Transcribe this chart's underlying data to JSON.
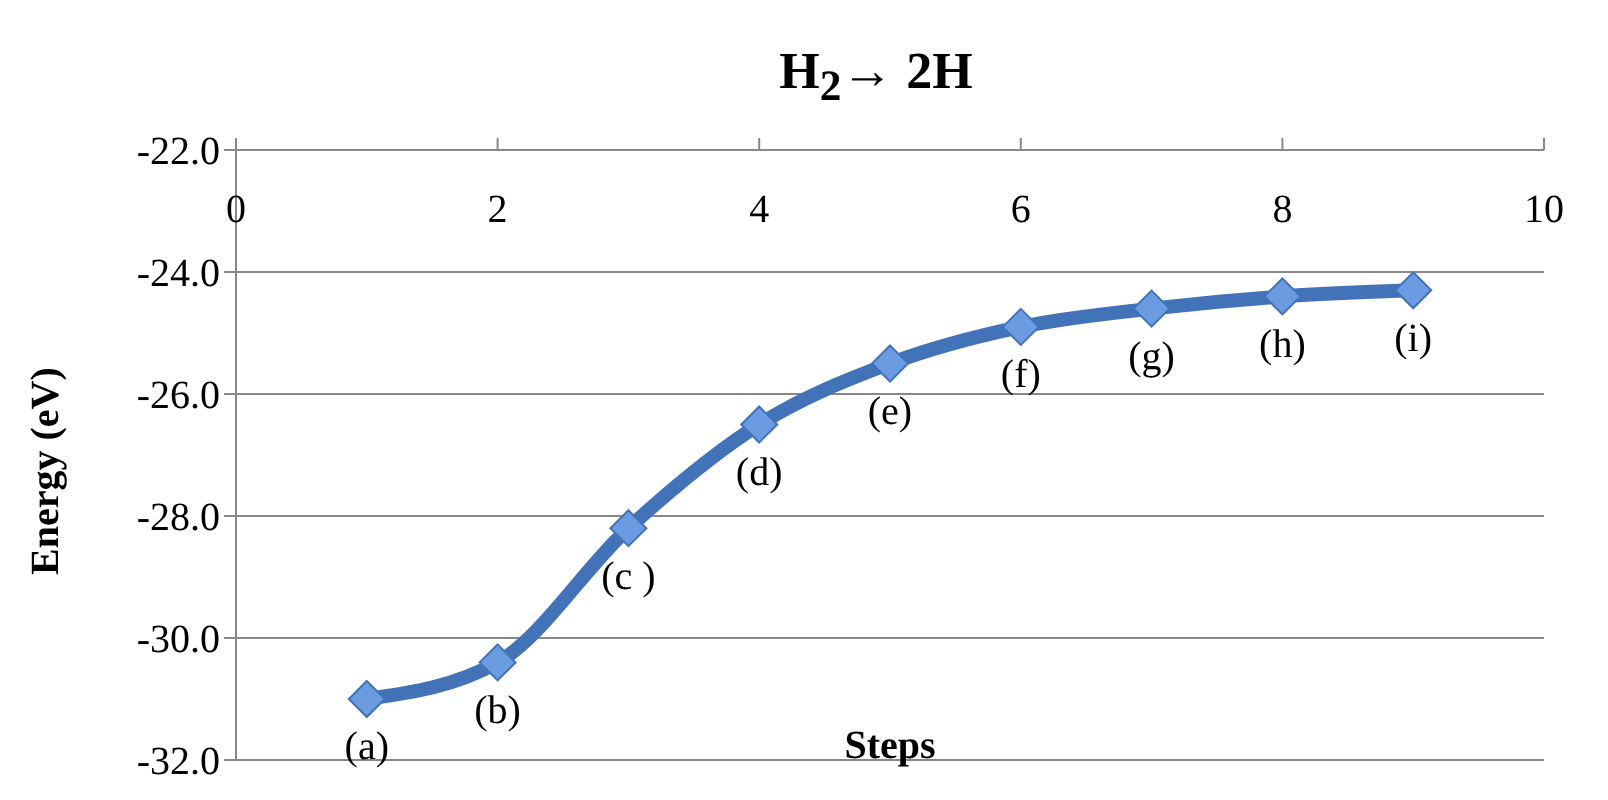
{
  "chart_data": {
    "type": "line",
    "title": "H$_{2}$→ 2H",
    "xlabel": "Steps",
    "ylabel": "Energy (eV)",
    "x": [
      1,
      2,
      3,
      4,
      5,
      6,
      7,
      8,
      9
    ],
    "series": [
      {
        "color": "#4273b8",
        "values": [
          -31.0,
          -30.4,
          -28.2,
          -26.5,
          -25.5,
          -24.9,
          -24.6,
          -24.4,
          -24.3
        ]
      }
    ],
    "xlim": [
      0,
      10
    ],
    "xticks": [
      0,
      2,
      4,
      6,
      8,
      10
    ],
    "ylim": [
      -32,
      -22
    ],
    "yticks": [
      {
        "value": -32,
        "label": "-32.0"
      },
      {
        "value": -30,
        "label": "-30.0"
      },
      {
        "value": -28,
        "label": "-28.0"
      },
      {
        "value": -26,
        "label": "-26.0"
      },
      {
        "value": -24,
        "label": "-24.0"
      },
      {
        "value": -22,
        "label": "-22.0"
      }
    ],
    "grid": "y",
    "marker": "diamond",
    "line_style": "solid",
    "legend": false,
    "annotations": [
      {
        "text": "(a)",
        "x": 1,
        "y": -31.0
      },
      {
        "text": "(b)",
        "x": 2,
        "y": -30.4
      },
      {
        "text": "(c )",
        "x": 3,
        "y": -28.2
      },
      {
        "text": "(d)",
        "x": 4,
        "y": -26.5
      },
      {
        "text": "(e)",
        "x": 5,
        "y": -25.5
      },
      {
        "text": "(f)",
        "x": 6,
        "y": -24.9
      },
      {
        "text": "(g)",
        "x": 7,
        "y": -24.6
      },
      {
        "text": "(h)",
        "x": 8,
        "y": -24.4
      },
      {
        "text": "(i)",
        "x": 9,
        "y": -24.3
      }
    ]
  }
}
